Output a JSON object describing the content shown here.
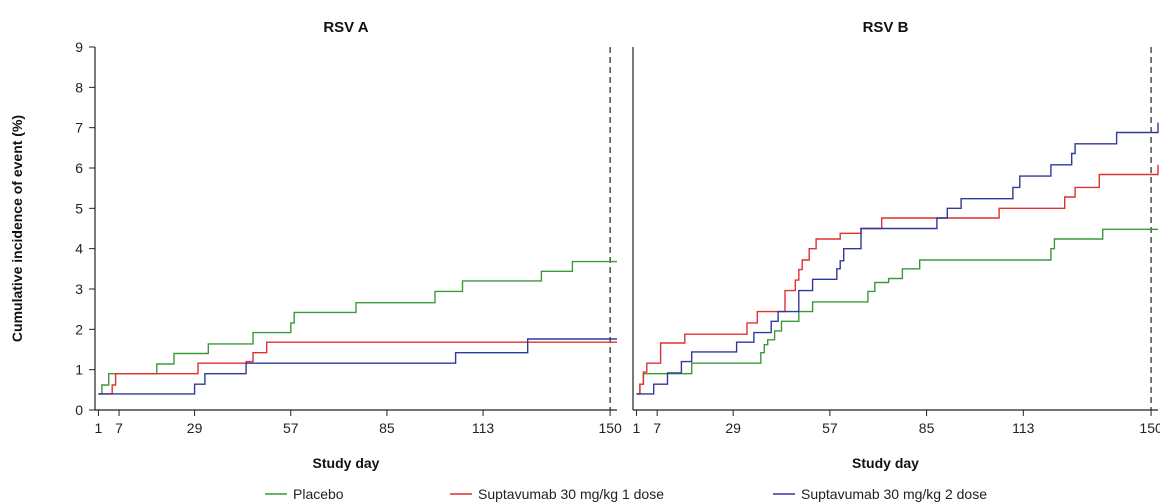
{
  "chart_data": [
    {
      "type": "line",
      "title": "RSV A",
      "xlabel": "Study day",
      "ylabel": "Cumulative incidence of event (%)",
      "xlim": [
        0,
        152
      ],
      "ylim": [
        0,
        9
      ],
      "xticks": [
        1,
        7,
        29,
        57,
        85,
        113,
        150
      ],
      "yticks": [
        0,
        1,
        2,
        3,
        4,
        5,
        6,
        7,
        8,
        9
      ],
      "reference_line_x": 150,
      "series": [
        {
          "name": "Placebo",
          "color": "#3a9a3a",
          "x": [
            1,
            2,
            4,
            18,
            23,
            33,
            46,
            57,
            58,
            76,
            99,
            107,
            130,
            139,
            152
          ],
          "y": [
            0.4,
            0.62,
            0.9,
            1.14,
            1.4,
            1.64,
            1.92,
            2.16,
            2.42,
            2.66,
            2.94,
            3.2,
            3.44,
            3.68,
            3.68
          ]
        },
        {
          "name": "Suptavumab 30 mg/kg 1 dose",
          "color": "#e03030",
          "x": [
            1,
            5,
            6,
            30,
            44,
            46,
            50,
            152
          ],
          "y": [
            0.4,
            0.62,
            0.9,
            1.16,
            1.2,
            1.42,
            1.68,
            1.68
          ]
        },
        {
          "name": "Suptavumab 30 mg/kg 2 dose",
          "color": "#303a9a",
          "x": [
            1,
            29,
            32,
            44,
            105,
            126,
            152
          ],
          "y": [
            0.4,
            0.64,
            0.9,
            1.16,
            1.42,
            1.76,
            1.76
          ]
        }
      ]
    },
    {
      "type": "line",
      "title": "RSV B",
      "xlabel": "Study day",
      "xlim": [
        0,
        152
      ],
      "ylim": [
        0,
        9
      ],
      "xticks": [
        1,
        7,
        29,
        57,
        85,
        113,
        150
      ],
      "reference_line_x": 150,
      "series": [
        {
          "name": "Placebo",
          "color": "#3a9a3a",
          "x": [
            1,
            2,
            3,
            6,
            17,
            37,
            38,
            39,
            41,
            43,
            48,
            52,
            68,
            70,
            74,
            78,
            83,
            86,
            121,
            122,
            136,
            152
          ],
          "y": [
            0.4,
            0.64,
            0.9,
            0.9,
            1.16,
            1.42,
            1.62,
            1.74,
            1.96,
            2.2,
            2.44,
            2.68,
            2.94,
            3.16,
            3.26,
            3.5,
            3.72,
            3.72,
            4.0,
            4.24,
            4.48,
            4.48
          ]
        },
        {
          "name": "Suptavumab 30 mg/kg 1 dose",
          "color": "#e03030",
          "x": [
            1,
            2,
            3,
            4,
            8,
            15,
            33,
            36,
            44,
            47,
            48,
            49,
            51,
            53,
            58,
            60,
            66,
            72,
            96,
            106,
            125,
            128,
            135,
            152
          ],
          "y": [
            0.4,
            0.64,
            0.94,
            1.16,
            1.66,
            1.88,
            2.16,
            2.44,
            2.96,
            3.22,
            3.48,
            3.72,
            4.0,
            4.24,
            4.24,
            4.38,
            4.5,
            4.76,
            4.76,
            5.0,
            5.28,
            5.52,
            5.84,
            6.08
          ]
        },
        {
          "name": "Suptavumab 30 mg/kg 2 dose",
          "color": "#303a9a",
          "x": [
            1,
            6,
            10,
            14,
            17,
            30,
            35,
            40,
            42,
            48,
            52,
            59,
            60,
            61,
            66,
            88,
            91,
            95,
            110,
            112,
            121,
            127,
            128,
            140,
            152
          ],
          "y": [
            0.4,
            0.64,
            0.92,
            1.2,
            1.44,
            1.68,
            1.92,
            2.2,
            2.44,
            2.96,
            3.24,
            3.5,
            3.7,
            4.0,
            4.5,
            4.76,
            5.0,
            5.24,
            5.52,
            5.8,
            6.08,
            6.36,
            6.6,
            6.88,
            7.12
          ]
        }
      ]
    }
  ],
  "legend": {
    "placement": "bottom",
    "entries": [
      {
        "label": "Placebo",
        "color": "#3a9a3a"
      },
      {
        "label": "Suptavumab 30 mg/kg 1 dose",
        "color": "#e03030"
      },
      {
        "label": "Suptavumab 30 mg/kg 2 dose",
        "color": "#303a9a"
      }
    ]
  }
}
